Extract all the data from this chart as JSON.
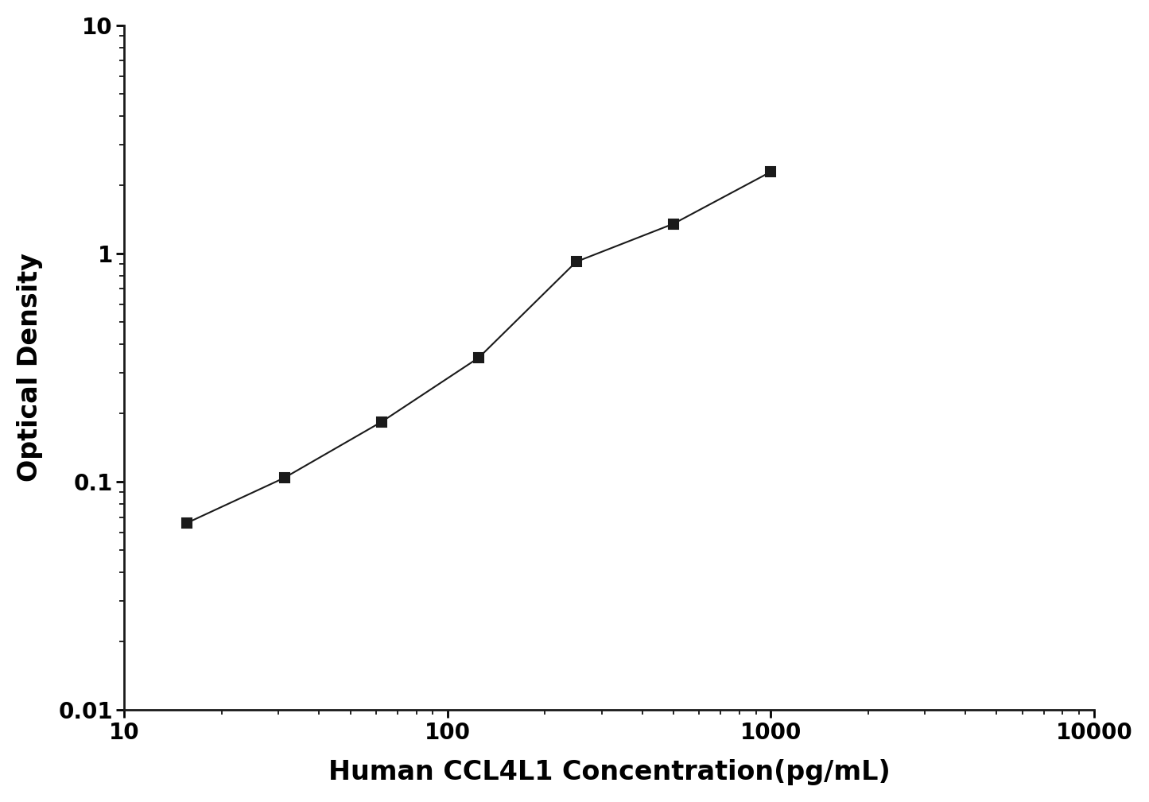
{
  "x": [
    15.625,
    31.25,
    62.5,
    125,
    250,
    500,
    1000
  ],
  "y": [
    0.066,
    0.104,
    0.183,
    0.35,
    0.92,
    1.35,
    2.28
  ],
  "xlabel": "Human CCL4L1 Concentration(pg/mL)",
  "ylabel": "Optical Density",
  "xlim_log": [
    10,
    10000
  ],
  "ylim_log": [
    0.01,
    10
  ],
  "x_ticks": [
    10,
    100,
    1000,
    10000
  ],
  "x_tick_labels": [
    "10",
    "100",
    "1000",
    "10000"
  ],
  "y_ticks": [
    0.01,
    0.1,
    1,
    10
  ],
  "y_tick_labels": [
    "0.01",
    "0.1",
    "1",
    "10"
  ],
  "line_color": "#1a1a1a",
  "marker": "s",
  "marker_size": 9,
  "marker_color": "#1a1a1a",
  "line_width": 1.5,
  "font_size_label": 24,
  "font_size_tick": 20,
  "background_color": "#ffffff"
}
